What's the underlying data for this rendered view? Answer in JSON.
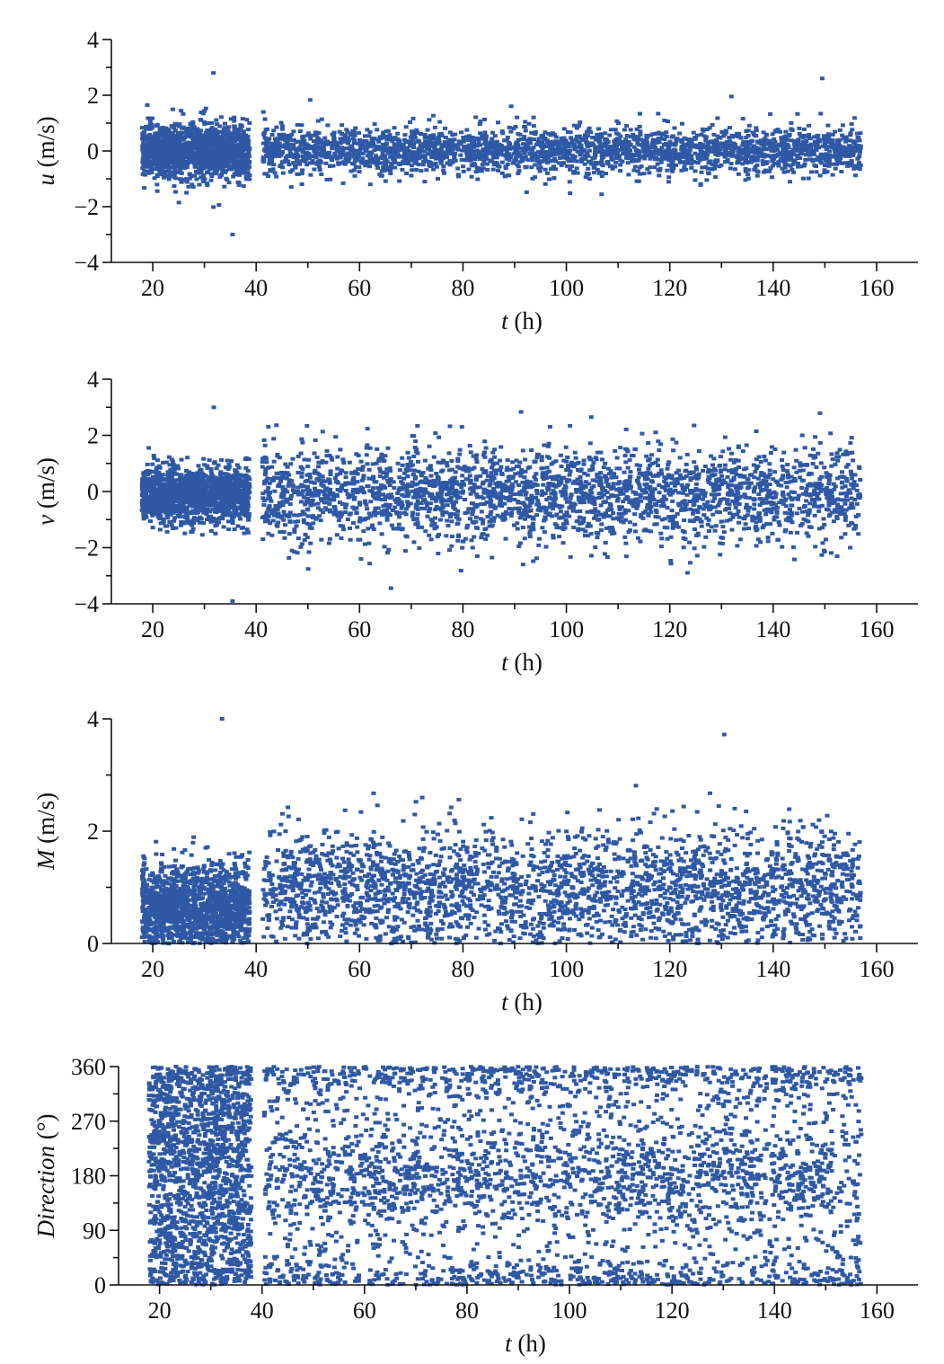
{
  "colors": {
    "points": "#2f58a5",
    "axes": "#111111",
    "background": "#ffffff"
  },
  "chart_data": [
    {
      "type": "scatter",
      "xlabel": {
        "var": "t",
        "unit": " (h)"
      },
      "ylabel": {
        "var": "u",
        "unit": " (m/s)"
      },
      "xlim": [
        12,
        168
      ],
      "ylim": [
        -4,
        4
      ],
      "xticks": [
        20,
        40,
        60,
        80,
        100,
        120,
        140,
        160
      ],
      "yticks": [
        -4,
        -2,
        0,
        2,
        4
      ],
      "ytick_labels": [
        "−4",
        "−2",
        "0",
        "2",
        "4"
      ],
      "x_range": [
        17.5,
        156.5
      ],
      "gap": [
        38.3,
        40.8
      ],
      "dense_segment": {
        "x": [
          17.5,
          38.3
        ],
        "center": 0.0,
        "spread": 0.48
      },
      "sparse_segment": {
        "center": 0.0,
        "spread": 0.42
      },
      "approx_extremes": {
        "max": 2.8,
        "min": -3.0
      },
      "grid": false
    },
    {
      "type": "scatter",
      "xlabel": {
        "var": "t",
        "unit": " (h)"
      },
      "ylabel": {
        "var": "v",
        "unit": " (m/s)"
      },
      "xlim": [
        12,
        168
      ],
      "ylim": [
        -4,
        4
      ],
      "xticks": [
        20,
        40,
        60,
        80,
        100,
        120,
        140,
        160
      ],
      "yticks": [
        -4,
        -2,
        0,
        2,
        4
      ],
      "ytick_labels": [
        "−4",
        "−2",
        "0",
        "2",
        "4"
      ],
      "x_range": [
        17.5,
        156.5
      ],
      "gap": [
        38.3,
        40.8
      ],
      "dense_segment": {
        "x": [
          17.5,
          38.3
        ],
        "center": -0.1,
        "spread": 0.5
      },
      "sparse_segment": {
        "center": -0.1,
        "spread": 0.85
      },
      "approx_extremes": {
        "max": 3.0,
        "min": -3.9
      },
      "grid": false
    },
    {
      "type": "scatter",
      "xlabel": {
        "var": "t",
        "unit": " (h)"
      },
      "ylabel": {
        "var": "M",
        "unit": " (m/s)"
      },
      "xlim": [
        12,
        168
      ],
      "ylim": [
        0,
        4
      ],
      "xticks": [
        20,
        40,
        60,
        80,
        100,
        120,
        140,
        160
      ],
      "yticks": [
        0,
        2,
        4
      ],
      "ytick_labels": [
        "0",
        "2",
        "4"
      ],
      "x_range": [
        17.5,
        156.5
      ],
      "gap": [
        38.3,
        40.8
      ],
      "dense_segment": {
        "x": [
          17.5,
          38.3
        ],
        "center": 0.65,
        "spread": 0.38
      },
      "sparse_segment": {
        "center": 0.95,
        "spread": 0.55
      },
      "approx_extremes": {
        "max": 4.0,
        "min": 0.0
      },
      "grid": false
    },
    {
      "type": "scatter",
      "xlabel": {
        "var": "t",
        "unit": " (h)"
      },
      "ylabel": {
        "var": "Direction",
        "unit": " (°)"
      },
      "xlim": [
        12,
        168
      ],
      "ylim": [
        0,
        360
      ],
      "xticks": [
        20,
        40,
        60,
        80,
        100,
        120,
        140,
        160
      ],
      "yticks": [
        0,
        90,
        180,
        270,
        360
      ],
      "ytick_labels": [
        "0",
        "90",
        "180",
        "270",
        "360"
      ],
      "x_range": [
        17.5,
        156.5
      ],
      "gap": [
        37.5,
        40.0
      ],
      "dense_segment": {
        "x": [
          17.5,
          37.5
        ],
        "center": 180,
        "spread": 110
      },
      "sparse_segment": {
        "center": 180,
        "spread": 110
      },
      "approx_extremes": {
        "max": 360,
        "min": 0
      },
      "grid": false
    }
  ]
}
